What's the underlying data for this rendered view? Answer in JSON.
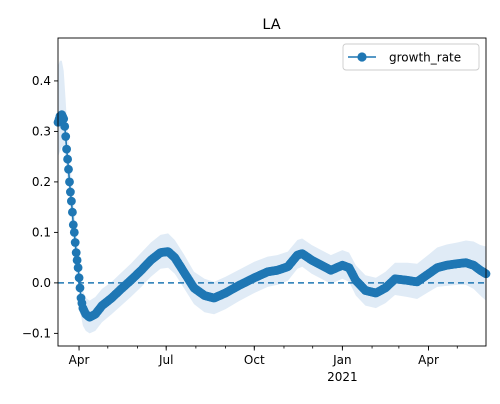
{
  "chart_data": {
    "type": "line",
    "title": "LA",
    "xlabel": "",
    "ylabel": "",
    "x_axis": {
      "type": "date",
      "range": [
        "2020-03-10",
        "2021-05-31"
      ],
      "major_ticks": [
        {
          "date": "2020-04-01",
          "label": "Apr"
        },
        {
          "date": "2020-07-01",
          "label": "Jul"
        },
        {
          "date": "2020-10-01",
          "label": "Oct"
        },
        {
          "date": "2021-01-01",
          "label": "Jan"
        },
        {
          "date": "2021-04-01",
          "label": "Apr"
        }
      ],
      "secondary_label": {
        "date": "2021-01-01",
        "label": "2021"
      }
    },
    "ylim": [
      -0.125,
      0.485
    ],
    "yticks": [
      {
        "value": -0.1,
        "label": "−0.1"
      },
      {
        "value": 0.0,
        "label": "0.0"
      },
      {
        "value": 0.1,
        "label": "0.1"
      },
      {
        "value": 0.2,
        "label": "0.2"
      },
      {
        "value": 0.3,
        "label": "0.3"
      },
      {
        "value": 0.4,
        "label": "0.4"
      }
    ],
    "reference_line": {
      "y": 0.0,
      "style": "dashed",
      "color": "#1f77b4"
    },
    "legend": {
      "position": "top-right",
      "entries": [
        "growth_rate"
      ]
    },
    "grid": false,
    "series": [
      {
        "name": "growth_rate",
        "color": "#1f77b4",
        "band_color": "#c6dbef",
        "marker": "circle",
        "points": [
          {
            "x": "2020-03-10",
            "y": 0.318,
            "lo": 0.25,
            "hi": 0.43
          },
          {
            "x": "2020-03-12",
            "y": 0.33,
            "lo": 0.26,
            "hi": 0.44
          },
          {
            "x": "2020-03-14",
            "y": 0.333,
            "lo": 0.27,
            "hi": 0.44
          },
          {
            "x": "2020-03-16",
            "y": 0.325,
            "lo": 0.27,
            "hi": 0.42
          },
          {
            "x": "2020-03-17",
            "y": 0.31,
            "lo": 0.26,
            "hi": 0.39
          },
          {
            "x": "2020-03-18",
            "y": 0.29,
            "lo": 0.24,
            "hi": 0.36
          },
          {
            "x": "2020-03-19",
            "y": 0.265,
            "lo": 0.22,
            "hi": 0.33
          },
          {
            "x": "2020-03-20",
            "y": 0.245,
            "lo": 0.2,
            "hi": 0.3
          },
          {
            "x": "2020-03-21",
            "y": 0.225,
            "lo": 0.18,
            "hi": 0.28
          },
          {
            "x": "2020-03-22",
            "y": 0.2,
            "lo": 0.16,
            "hi": 0.25
          },
          {
            "x": "2020-03-23",
            "y": 0.18,
            "lo": 0.14,
            "hi": 0.23
          },
          {
            "x": "2020-03-24",
            "y": 0.162,
            "lo": 0.12,
            "hi": 0.21
          },
          {
            "x": "2020-03-25",
            "y": 0.14,
            "lo": 0.1,
            "hi": 0.19
          },
          {
            "x": "2020-03-26",
            "y": 0.115,
            "lo": 0.08,
            "hi": 0.16
          },
          {
            "x": "2020-03-27",
            "y": 0.1,
            "lo": 0.06,
            "hi": 0.14
          },
          {
            "x": "2020-03-28",
            "y": 0.08,
            "lo": 0.04,
            "hi": 0.12
          },
          {
            "x": "2020-03-29",
            "y": 0.06,
            "lo": 0.02,
            "hi": 0.1
          },
          {
            "x": "2020-03-30",
            "y": 0.045,
            "lo": 0.01,
            "hi": 0.08
          },
          {
            "x": "2020-03-31",
            "y": 0.03,
            "lo": -0.005,
            "hi": 0.065
          },
          {
            "x": "2020-04-01",
            "y": 0.01,
            "lo": -0.025,
            "hi": 0.045
          },
          {
            "x": "2020-04-02",
            "y": -0.01,
            "lo": -0.045,
            "hi": 0.025
          },
          {
            "x": "2020-04-03",
            "y": -0.03,
            "lo": -0.065,
            "hi": 0.005
          },
          {
            "x": "2020-04-05",
            "y": -0.05,
            "lo": -0.085,
            "hi": -0.015
          },
          {
            "x": "2020-04-08",
            "y": -0.062,
            "lo": -0.095,
            "hi": -0.03
          },
          {
            "x": "2020-04-12",
            "y": -0.068,
            "lo": -0.1,
            "hi": -0.035
          },
          {
            "x": "2020-04-18",
            "y": -0.062,
            "lo": -0.095,
            "hi": -0.028
          },
          {
            "x": "2020-04-25",
            "y": -0.045,
            "lo": -0.078,
            "hi": -0.012
          },
          {
            "x": "2020-05-05",
            "y": -0.03,
            "lo": -0.062,
            "hi": 0.002
          },
          {
            "x": "2020-05-15",
            "y": -0.012,
            "lo": -0.045,
            "hi": 0.02
          },
          {
            "x": "2020-05-25",
            "y": 0.005,
            "lo": -0.028,
            "hi": 0.038
          },
          {
            "x": "2020-06-05",
            "y": 0.025,
            "lo": -0.008,
            "hi": 0.06
          },
          {
            "x": "2020-06-15",
            "y": 0.045,
            "lo": 0.012,
            "hi": 0.08
          },
          {
            "x": "2020-06-25",
            "y": 0.06,
            "lo": 0.028,
            "hi": 0.095
          },
          {
            "x": "2020-07-03",
            "y": 0.062,
            "lo": 0.03,
            "hi": 0.098
          },
          {
            "x": "2020-07-10",
            "y": 0.05,
            "lo": 0.018,
            "hi": 0.085
          },
          {
            "x": "2020-07-20",
            "y": 0.02,
            "lo": -0.012,
            "hi": 0.055
          },
          {
            "x": "2020-07-30",
            "y": -0.01,
            "lo": -0.042,
            "hi": 0.022
          },
          {
            "x": "2020-08-10",
            "y": -0.025,
            "lo": -0.058,
            "hi": 0.008
          },
          {
            "x": "2020-08-20",
            "y": -0.03,
            "lo": -0.062,
            "hi": 0.002
          },
          {
            "x": "2020-09-01",
            "y": -0.02,
            "lo": -0.052,
            "hi": 0.012
          },
          {
            "x": "2020-09-15",
            "y": -0.005,
            "lo": -0.036,
            "hi": 0.026
          },
          {
            "x": "2020-10-01",
            "y": 0.01,
            "lo": -0.02,
            "hi": 0.042
          },
          {
            "x": "2020-10-15",
            "y": 0.022,
            "lo": -0.008,
            "hi": 0.052
          },
          {
            "x": "2020-10-25",
            "y": 0.025,
            "lo": -0.004,
            "hi": 0.055
          },
          {
            "x": "2020-11-05",
            "y": 0.032,
            "lo": 0.004,
            "hi": 0.062
          },
          {
            "x": "2020-11-15",
            "y": 0.055,
            "lo": 0.028,
            "hi": 0.085
          },
          {
            "x": "2020-11-20",
            "y": 0.058,
            "lo": 0.032,
            "hi": 0.088
          },
          {
            "x": "2020-11-30",
            "y": 0.045,
            "lo": 0.018,
            "hi": 0.075
          },
          {
            "x": "2020-12-10",
            "y": 0.035,
            "lo": 0.008,
            "hi": 0.065
          },
          {
            "x": "2020-12-20",
            "y": 0.025,
            "lo": -0.002,
            "hi": 0.055
          },
          {
            "x": "2021-01-01",
            "y": 0.035,
            "lo": 0.008,
            "hi": 0.065
          },
          {
            "x": "2021-01-08",
            "y": 0.03,
            "lo": 0.002,
            "hi": 0.06
          },
          {
            "x": "2021-01-15",
            "y": 0.005,
            "lo": -0.025,
            "hi": 0.035
          },
          {
            "x": "2021-01-25",
            "y": -0.015,
            "lo": -0.045,
            "hi": 0.015
          },
          {
            "x": "2021-02-05",
            "y": -0.02,
            "lo": -0.05,
            "hi": 0.01
          },
          {
            "x": "2021-02-15",
            "y": -0.01,
            "lo": -0.04,
            "hi": 0.022
          },
          {
            "x": "2021-02-25",
            "y": 0.008,
            "lo": -0.024,
            "hi": 0.04
          },
          {
            "x": "2021-03-10",
            "y": 0.005,
            "lo": -0.028,
            "hi": 0.04
          },
          {
            "x": "2021-03-20",
            "y": 0.002,
            "lo": -0.032,
            "hi": 0.038
          },
          {
            "x": "2021-04-01",
            "y": 0.018,
            "lo": -0.018,
            "hi": 0.056
          },
          {
            "x": "2021-04-10",
            "y": 0.03,
            "lo": -0.008,
            "hi": 0.07
          },
          {
            "x": "2021-04-20",
            "y": 0.035,
            "lo": -0.006,
            "hi": 0.076
          },
          {
            "x": "2021-05-01",
            "y": 0.038,
            "lo": -0.004,
            "hi": 0.08
          },
          {
            "x": "2021-05-10",
            "y": 0.04,
            "lo": -0.004,
            "hi": 0.084
          },
          {
            "x": "2021-05-18",
            "y": 0.035,
            "lo": -0.012,
            "hi": 0.082
          },
          {
            "x": "2021-05-25",
            "y": 0.025,
            "lo": -0.025,
            "hi": 0.075
          },
          {
            "x": "2021-05-31",
            "y": 0.018,
            "lo": -0.035,
            "hi": 0.072
          }
        ]
      }
    ]
  }
}
